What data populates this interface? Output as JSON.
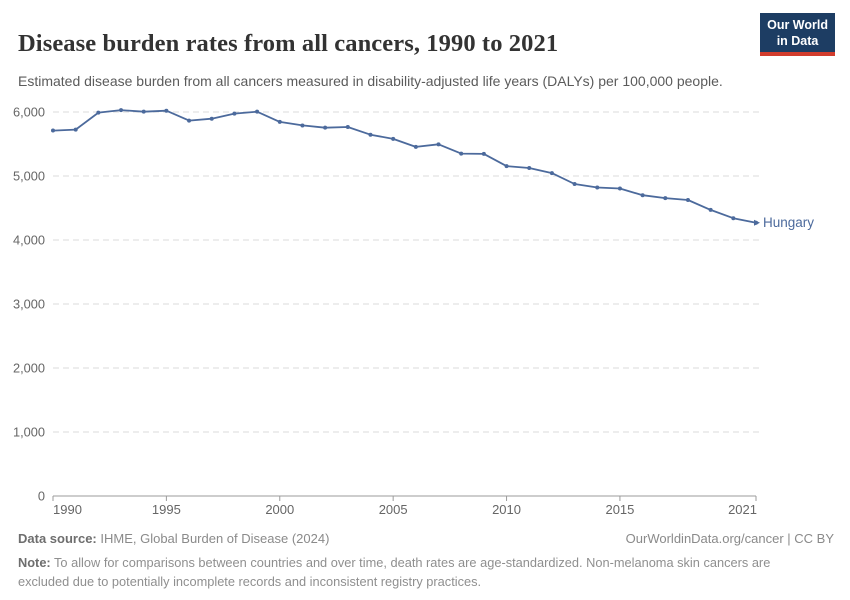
{
  "header": {
    "title": "Disease burden rates from all cancers, 1990 to 2021",
    "subtitle": "Estimated disease burden from all cancers measured in disability-adjusted life years (DALYs) per 100,000 people.",
    "logo": {
      "line1": "Our World",
      "line2": "in Data",
      "bg_color": "#1d3d63",
      "stripe_color": "#d23c2d"
    }
  },
  "chart_data": {
    "type": "line",
    "title": "Disease burden rates from all cancers, 1990 to 2021",
    "xlabel": "",
    "ylabel": "Estimated disease burden (DALYs per 100,000 people)",
    "x": [
      1990,
      1991,
      1992,
      1993,
      1994,
      1995,
      1996,
      1997,
      1998,
      1999,
      2000,
      2001,
      2002,
      2003,
      2004,
      2005,
      2006,
      2007,
      2008,
      2009,
      2010,
      2011,
      2012,
      2013,
      2014,
      2015,
      2016,
      2017,
      2018,
      2019,
      2020,
      2021
    ],
    "series": [
      {
        "name": "Hungary",
        "color": "#4c6a9c",
        "values": [
          5710,
          5725,
          5990,
          6030,
          6005,
          6020,
          5865,
          5895,
          5975,
          6005,
          5845,
          5790,
          5755,
          5765,
          5645,
          5580,
          5455,
          5495,
          5350,
          5345,
          5155,
          5125,
          5045,
          4875,
          4820,
          4805,
          4700,
          4655,
          4625,
          4470,
          4340,
          4270
        ]
      }
    ],
    "ylim": [
      0,
      6000
    ],
    "yticks": [
      {
        "value": 0,
        "label": "0"
      },
      {
        "value": 1000,
        "label": "1,000"
      },
      {
        "value": 2000,
        "label": "2,000"
      },
      {
        "value": 3000,
        "label": "3,000"
      },
      {
        "value": 4000,
        "label": "4,000"
      },
      {
        "value": 5000,
        "label": "5,000"
      },
      {
        "value": 6000,
        "label": "6,000"
      }
    ],
    "xticks": [
      {
        "value": 1990,
        "label": "1990"
      },
      {
        "value": 1995,
        "label": "1995"
      },
      {
        "value": 2000,
        "label": "2000"
      },
      {
        "value": 2005,
        "label": "2005"
      },
      {
        "value": 2010,
        "label": "2010"
      },
      {
        "value": 2015,
        "label": "2015"
      },
      {
        "value": 2021,
        "label": "2021"
      }
    ],
    "grid": "horizontal-dashed",
    "legend": "end-of-line-label",
    "colors": {
      "gridline": "#dbdbdb",
      "axis": "#9b9b9b",
      "tick_label": "#666666"
    }
  },
  "footer": {
    "datasource_label": "Data source:",
    "datasource_text": " IHME, Global Burden of Disease (2024)",
    "rights": "OurWorldinData.org/cancer | CC BY",
    "note_label": "Note:",
    "note_text": " To allow for comparisons between countries and over time, death rates are age-standardized. Non-melanoma skin cancers are excluded due to potentially incomplete records and inconsistent registry practices."
  }
}
